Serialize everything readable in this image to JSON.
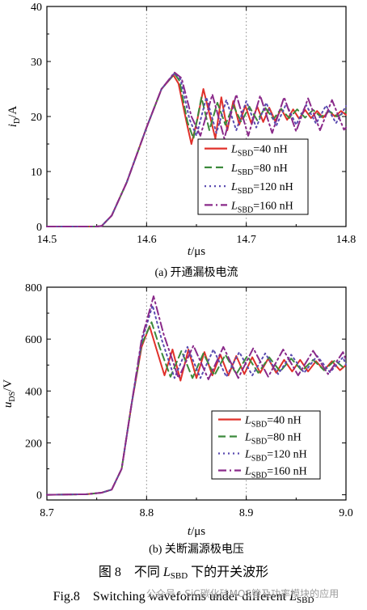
{
  "chart_data": [
    {
      "type": "line",
      "title": "",
      "subcaption": "(a) 开通漏极电流",
      "xlabel": "t/μs",
      "ylabel": "i_D/A",
      "xlim": [
        14.5,
        14.8
      ],
      "ylim": [
        0,
        40
      ],
      "xticks": [
        "14.5",
        "14.6",
        "14.7",
        "14.8"
      ],
      "yticks": [
        "0",
        "10",
        "20",
        "30",
        "40"
      ],
      "grid": "dotted vertical",
      "legend_position": "bottom-right",
      "series": [
        {
          "name": "LSBD=40 nH",
          "style": "solid",
          "color": "#e0302a",
          "x": [
            14.5,
            14.55,
            14.555,
            14.565,
            14.58,
            14.6,
            14.615,
            14.627,
            14.632,
            14.64,
            14.645,
            14.651,
            14.657,
            14.663,
            14.669,
            14.675,
            14.681,
            14.687,
            14.693,
            14.699,
            14.705,
            14.711,
            14.717,
            14.723,
            14.729,
            14.735,
            14.741,
            14.747,
            14.753,
            14.759,
            14.765,
            14.771,
            14.777,
            14.783,
            14.789,
            14.795,
            14.8
          ],
          "y": [
            0,
            0,
            0.1,
            2,
            8,
            18,
            25,
            27.5,
            26,
            19,
            15,
            19.5,
            25,
            20.5,
            16,
            23.5,
            17.5,
            22.8,
            18.5,
            22,
            18.8,
            21.8,
            19,
            21.6,
            19.2,
            21.4,
            19.4,
            21.3,
            19.6,
            21.2,
            19.7,
            21,
            19.8,
            21,
            20,
            21,
            20.3
          ]
        },
        {
          "name": "LSBD=80 nH",
          "style": "dashed",
          "color": "#3c8a3c",
          "x": [
            14.5,
            14.55,
            14.555,
            14.565,
            14.58,
            14.6,
            14.615,
            14.628,
            14.633,
            14.641,
            14.647,
            14.655,
            14.663,
            14.671,
            14.679,
            14.687,
            14.695,
            14.703,
            14.711,
            14.719,
            14.727,
            14.735,
            14.743,
            14.751,
            14.759,
            14.767,
            14.775,
            14.783,
            14.791,
            14.8
          ],
          "y": [
            0,
            0,
            0.1,
            2,
            8,
            18,
            25,
            27.8,
            26.5,
            19,
            16,
            23.5,
            17.5,
            22.5,
            18.5,
            22,
            19,
            21.8,
            19.3,
            21.6,
            19.5,
            21.4,
            19.7,
            21.3,
            19.8,
            21.2,
            19.9,
            21,
            20,
            20.8
          ]
        },
        {
          "name": "LSBD=120 nH",
          "style": "dotted",
          "color": "#5a4bb0",
          "x": [
            14.5,
            14.55,
            14.555,
            14.565,
            14.58,
            14.6,
            14.615,
            14.628,
            14.634,
            14.643,
            14.65,
            14.66,
            14.67,
            14.68,
            14.69,
            14.7,
            14.71,
            14.72,
            14.73,
            14.74,
            14.75,
            14.76,
            14.77,
            14.78,
            14.79,
            14.8
          ],
          "y": [
            0,
            0,
            0.1,
            2,
            8,
            18,
            25,
            27.9,
            26.8,
            19.5,
            16.5,
            23.5,
            17,
            23,
            17.5,
            22.8,
            18,
            22.5,
            18.3,
            22.3,
            18.5,
            22.1,
            18.7,
            22,
            18.8,
            21.9
          ]
        },
        {
          "name": "LSBD=160 nH",
          "style": "dashdot",
          "color": "#8a2a8a",
          "x": [
            14.5,
            14.55,
            14.555,
            14.565,
            14.58,
            14.6,
            14.615,
            14.628,
            14.635,
            14.645,
            14.654,
            14.666,
            14.678,
            14.69,
            14.702,
            14.714,
            14.726,
            14.738,
            14.75,
            14.762,
            14.774,
            14.786,
            14.798,
            14.8
          ],
          "y": [
            0,
            0,
            0.1,
            2,
            8,
            18,
            25,
            28,
            27,
            20,
            16.5,
            24,
            16,
            24,
            16.5,
            23.8,
            17,
            23.5,
            17.3,
            23.3,
            17.5,
            23,
            17.6,
            18
          ]
        }
      ]
    },
    {
      "type": "line",
      "title": "",
      "subcaption": "(b) 关断漏源极电压",
      "xlabel": "t/μs",
      "ylabel": "u_DS/V",
      "xlim": [
        8.7,
        9.0
      ],
      "ylim": [
        -20,
        800
      ],
      "xticks": [
        "8.7",
        "8.8",
        "8.9",
        "9.0"
      ],
      "yticks": [
        "0",
        "200",
        "400",
        "600",
        "800"
      ],
      "grid": "dotted vertical",
      "legend_position": "bottom-right",
      "series": [
        {
          "name": "LSBD=40 nH",
          "style": "solid",
          "color": "#e0302a",
          "x": [
            8.7,
            8.74,
            8.755,
            8.765,
            8.775,
            8.785,
            8.795,
            8.803,
            8.81,
            8.818,
            8.826,
            8.834,
            8.842,
            8.85,
            8.858,
            8.866,
            8.874,
            8.882,
            8.89,
            8.898,
            8.906,
            8.914,
            8.922,
            8.93,
            8.938,
            8.946,
            8.954,
            8.962,
            8.97,
            8.978,
            8.986,
            8.994,
            9.0
          ],
          "y": [
            0,
            2,
            8,
            20,
            100,
            350,
            570,
            650,
            560,
            460,
            560,
            440,
            560,
            450,
            550,
            460,
            540,
            460,
            535,
            465,
            530,
            470,
            525,
            470,
            520,
            475,
            520,
            475,
            515,
            480,
            515,
            480,
            500
          ]
        },
        {
          "name": "LSBD=80 nH",
          "style": "dashed",
          "color": "#3c8a3c",
          "x": [
            8.7,
            8.74,
            8.755,
            8.765,
            8.775,
            8.785,
            8.795,
            8.805,
            8.813,
            8.824,
            8.835,
            8.846,
            8.857,
            8.868,
            8.879,
            8.89,
            8.901,
            8.912,
            8.923,
            8.934,
            8.945,
            8.956,
            8.967,
            8.978,
            8.989,
            9.0
          ],
          "y": [
            0,
            2,
            8,
            20,
            100,
            350,
            580,
            665,
            570,
            455,
            555,
            450,
            545,
            460,
            540,
            465,
            535,
            470,
            530,
            475,
            525,
            478,
            520,
            480,
            518,
            482
          ]
        },
        {
          "name": "LSBD=120 nH",
          "style": "dotted",
          "color": "#5a4bb0",
          "x": [
            8.7,
            8.74,
            8.755,
            8.765,
            8.775,
            8.785,
            8.795,
            8.806,
            8.815,
            8.828,
            8.841,
            8.854,
            8.867,
            8.88,
            8.893,
            8.906,
            8.919,
            8.932,
            8.945,
            8.958,
            8.971,
            8.984,
            8.997,
            9.0
          ],
          "y": [
            0,
            2,
            8,
            20,
            100,
            350,
            590,
            730,
            600,
            450,
            570,
            450,
            560,
            455,
            550,
            460,
            545,
            465,
            540,
            470,
            535,
            472,
            530,
            500
          ]
        },
        {
          "name": "LSBD=160 nH",
          "style": "dashdot",
          "color": "#8a2a8a",
          "x": [
            8.7,
            8.74,
            8.755,
            8.765,
            8.775,
            8.785,
            8.795,
            8.807,
            8.817,
            8.832,
            8.847,
            8.862,
            8.877,
            8.892,
            8.907,
            8.922,
            8.937,
            8.952,
            8.967,
            8.982,
            8.997,
            9.0
          ],
          "y": [
            0,
            2,
            8,
            20,
            100,
            350,
            600,
            765,
            620,
            450,
            575,
            445,
            570,
            450,
            565,
            455,
            560,
            460,
            555,
            465,
            550,
            520
          ]
        }
      ]
    }
  ],
  "captions": {
    "cn_prefix": "图 8　不同 ",
    "cn_sym": "L",
    "cn_sub": "SBD",
    "cn_suffix": " 下的开关波形",
    "en_prefix": "Fig.8　Switching waveforms under different ",
    "en_sym": "L",
    "en_sub": "SBD"
  },
  "watermark": "公众号 · SiC碳化硅MOS管及功率模块的应用"
}
